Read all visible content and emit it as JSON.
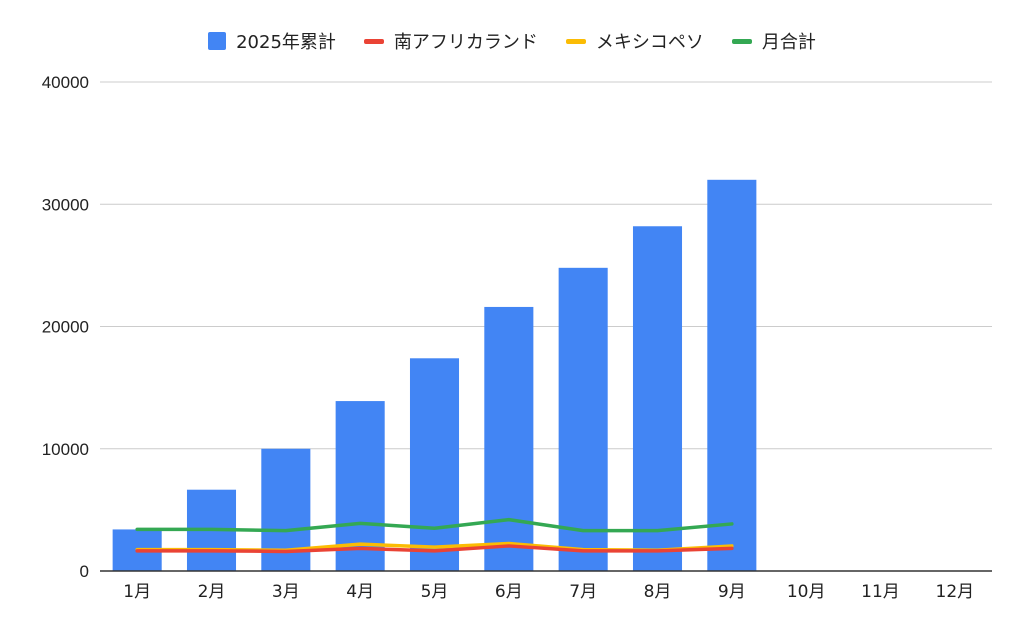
{
  "chart_data": {
    "type": "bar",
    "categories": [
      "1月",
      "2月",
      "3月",
      "4月",
      "5月",
      "6月",
      "7月",
      "8月",
      "9月",
      "10月",
      "11月",
      "12月"
    ],
    "ylim": [
      0,
      40000
    ],
    "yticks": [
      "0",
      "10000",
      "20000",
      "30000",
      "40000"
    ],
    "ytick_values": [
      0,
      10000,
      20000,
      30000,
      40000
    ],
    "grid": true,
    "legend_position": "top",
    "series": [
      {
        "name": "2025年累計",
        "kind": "bar",
        "color": "#4285F4",
        "values": [
          3400,
          6650,
          10000,
          13900,
          17400,
          21600,
          24800,
          28200,
          32000,
          null,
          null,
          null
        ]
      },
      {
        "name": "南アフリカランド",
        "kind": "line",
        "color": "#EA4335",
        "values": [
          1650,
          1650,
          1600,
          1850,
          1650,
          2050,
          1650,
          1650,
          1850,
          null,
          null,
          null
        ]
      },
      {
        "name": "メキシコペソ",
        "kind": "line",
        "color": "#FBBC04",
        "values": [
          1750,
          1750,
          1700,
          2200,
          1950,
          2250,
          1750,
          1700,
          2050,
          null,
          null,
          null
        ]
      },
      {
        "name": "月合計",
        "kind": "line",
        "color": "#34A853",
        "values": [
          3400,
          3400,
          3300,
          3900,
          3500,
          4200,
          3300,
          3300,
          3850,
          null,
          null,
          null
        ]
      }
    ]
  }
}
